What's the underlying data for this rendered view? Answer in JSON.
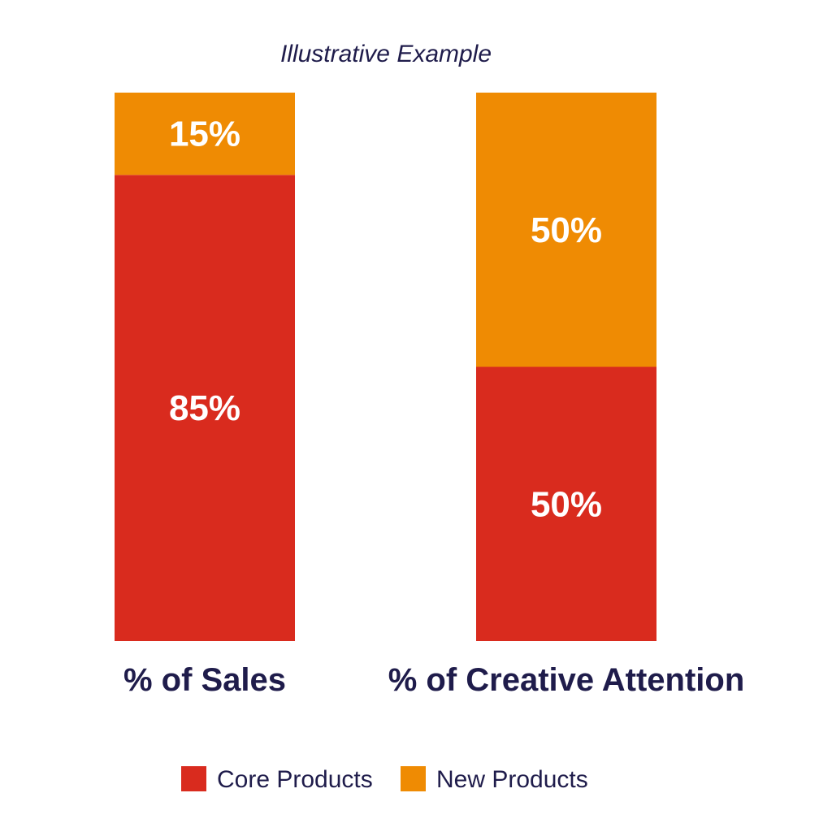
{
  "chart_data": {
    "type": "bar",
    "stacked": true,
    "title": "Illustrative Example",
    "categories": [
      "% of Sales",
      "% of Creative Attention"
    ],
    "series": [
      {
        "name": "Core Products",
        "values": [
          85,
          50
        ],
        "labels": [
          "85%",
          "50%"
        ],
        "color": "#d92b1e"
      },
      {
        "name": "New Products",
        "values": [
          15,
          50
        ],
        "labels": [
          "15%",
          "50%"
        ],
        "color": "#ef8b03"
      }
    ],
    "ylim": [
      0,
      100
    ],
    "grid": false,
    "legend_position": "bottom"
  }
}
